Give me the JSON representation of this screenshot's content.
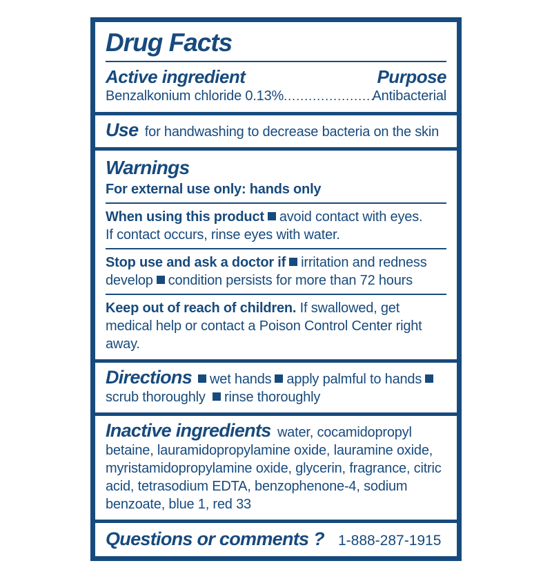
{
  "label": {
    "accent_color": "#174a7d",
    "title": "Drug Facts",
    "active": {
      "heading": "Active ingredient",
      "purpose_heading": "Purpose",
      "name": "Benzalkonium chloride 0.13%",
      "leader_dots": "..................................................................",
      "purpose": "Antibacterial"
    },
    "use": {
      "heading": "Use",
      "text": "for handwashing to decrease bacteria on the skin"
    },
    "warnings": {
      "heading": "Warnings",
      "external_use": "For external use only: hands only",
      "when_using": {
        "lead": "When using this product",
        "bullet": "avoid contact with eyes.",
        "after": "If contact occurs, rinse eyes with water."
      },
      "stop_use": {
        "lead": "Stop use and ask a doctor if",
        "bullets": [
          "irritation and redness develop",
          "condition persists for more than 72 hours"
        ]
      },
      "keep_out": {
        "lead": "Keep out of reach of children.",
        "text": "If swallowed, get medical help or contact a Poison Control Center right away."
      }
    },
    "directions": {
      "heading": "Directions",
      "bullets": [
        "wet hands",
        "apply palmful to hands",
        "scrub thoroughly",
        "rinse thoroughly"
      ]
    },
    "inactive": {
      "heading": "Inactive ingredients",
      "text": "water, cocamidopropyl betaine, lauramidopropylamine oxide, lauramine oxide, myristamidopropylamine oxide, glycerin, fragrance, citric acid, tetrasodium EDTA, benzophenone-4, sodium benzoate, blue 1, red 33"
    },
    "contact": {
      "heading": "Questions or comments ?",
      "phone": "1-888-287-1915"
    }
  }
}
